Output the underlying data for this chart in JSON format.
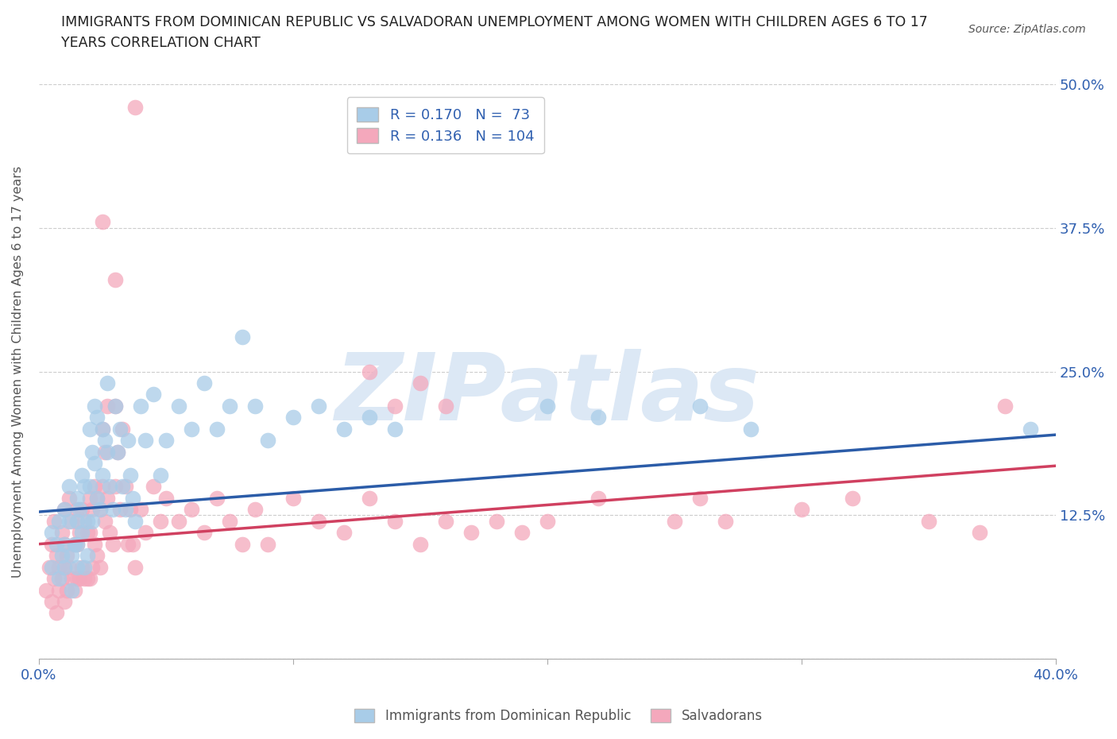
{
  "title_line1": "IMMIGRANTS FROM DOMINICAN REPUBLIC VS SALVADORAN UNEMPLOYMENT AMONG WOMEN WITH CHILDREN AGES 6 TO 17",
  "title_line2": "YEARS CORRELATION CHART",
  "source": "Source: ZipAtlas.com",
  "ylabel": "Unemployment Among Women with Children Ages 6 to 17 years",
  "xlim": [
    0,
    0.4
  ],
  "ylim": [
    0,
    0.5
  ],
  "xticks": [
    0.0,
    0.1,
    0.2,
    0.3,
    0.4
  ],
  "xticklabels": [
    "0.0%",
    "",
    "",
    "",
    "40.0%"
  ],
  "ytick_vals": [
    0.0,
    0.125,
    0.25,
    0.375,
    0.5
  ],
  "ytick_labels": [
    "",
    "12.5%",
    "25.0%",
    "37.5%",
    "50.0%"
  ],
  "blue_R": 0.17,
  "blue_N": 73,
  "pink_R": 0.136,
  "pink_N": 104,
  "blue_color": "#a8cce8",
  "pink_color": "#f4a8bc",
  "blue_line_color": "#2b5ca8",
  "pink_line_color": "#d04060",
  "axis_label_color": "#3060b0",
  "watermark": "ZIPatlas",
  "watermark_color": "#dce8f5",
  "legend_label_blue": "Immigrants from Dominican Republic",
  "legend_label_pink": "Salvadorans",
  "grid_color": "#cccccc",
  "blue_x": [
    0.005,
    0.005,
    0.007,
    0.008,
    0.008,
    0.009,
    0.01,
    0.01,
    0.01,
    0.012,
    0.012,
    0.013,
    0.013,
    0.014,
    0.015,
    0.015,
    0.015,
    0.015,
    0.016,
    0.017,
    0.017,
    0.018,
    0.018,
    0.019,
    0.019,
    0.02,
    0.02,
    0.021,
    0.021,
    0.022,
    0.022,
    0.023,
    0.023,
    0.024,
    0.025,
    0.025,
    0.026,
    0.027,
    0.027,
    0.028,
    0.029,
    0.03,
    0.031,
    0.032,
    0.033,
    0.034,
    0.035,
    0.036,
    0.037,
    0.038,
    0.04,
    0.042,
    0.045,
    0.048,
    0.05,
    0.055,
    0.06,
    0.065,
    0.07,
    0.075,
    0.08,
    0.085,
    0.09,
    0.1,
    0.11,
    0.12,
    0.13,
    0.14,
    0.2,
    0.22,
    0.26,
    0.28,
    0.39
  ],
  "blue_y": [
    0.11,
    0.08,
    0.1,
    0.12,
    0.07,
    0.09,
    0.13,
    0.1,
    0.08,
    0.15,
    0.12,
    0.09,
    0.06,
    0.1,
    0.14,
    0.12,
    0.1,
    0.08,
    0.13,
    0.16,
    0.11,
    0.15,
    0.08,
    0.12,
    0.09,
    0.2,
    0.15,
    0.18,
    0.12,
    0.22,
    0.17,
    0.21,
    0.14,
    0.13,
    0.2,
    0.16,
    0.19,
    0.24,
    0.18,
    0.15,
    0.13,
    0.22,
    0.18,
    0.2,
    0.15,
    0.13,
    0.19,
    0.16,
    0.14,
    0.12,
    0.22,
    0.19,
    0.23,
    0.16,
    0.19,
    0.22,
    0.2,
    0.24,
    0.2,
    0.22,
    0.28,
    0.22,
    0.19,
    0.21,
    0.22,
    0.2,
    0.21,
    0.2,
    0.22,
    0.21,
    0.22,
    0.2,
    0.2
  ],
  "pink_x": [
    0.003,
    0.004,
    0.005,
    0.005,
    0.006,
    0.006,
    0.007,
    0.007,
    0.008,
    0.008,
    0.009,
    0.009,
    0.01,
    0.01,
    0.01,
    0.01,
    0.011,
    0.011,
    0.012,
    0.012,
    0.013,
    0.013,
    0.014,
    0.014,
    0.015,
    0.015,
    0.015,
    0.016,
    0.016,
    0.017,
    0.017,
    0.018,
    0.018,
    0.019,
    0.019,
    0.02,
    0.02,
    0.02,
    0.021,
    0.021,
    0.022,
    0.022,
    0.023,
    0.023,
    0.024,
    0.024,
    0.025,
    0.025,
    0.026,
    0.026,
    0.027,
    0.027,
    0.028,
    0.029,
    0.03,
    0.03,
    0.031,
    0.032,
    0.033,
    0.034,
    0.035,
    0.036,
    0.037,
    0.038,
    0.04,
    0.042,
    0.045,
    0.048,
    0.05,
    0.055,
    0.06,
    0.065,
    0.07,
    0.075,
    0.08,
    0.085,
    0.09,
    0.1,
    0.11,
    0.12,
    0.13,
    0.14,
    0.15,
    0.16,
    0.17,
    0.18,
    0.19,
    0.2,
    0.22,
    0.25,
    0.26,
    0.27,
    0.3,
    0.32,
    0.35,
    0.37,
    0.038,
    0.13,
    0.14,
    0.15,
    0.16,
    0.025,
    0.03,
    0.38
  ],
  "pink_y": [
    0.06,
    0.08,
    0.05,
    0.1,
    0.07,
    0.12,
    0.09,
    0.04,
    0.08,
    0.06,
    0.11,
    0.07,
    0.13,
    0.1,
    0.08,
    0.05,
    0.09,
    0.06,
    0.14,
    0.08,
    0.12,
    0.07,
    0.1,
    0.06,
    0.13,
    0.1,
    0.07,
    0.11,
    0.07,
    0.13,
    0.08,
    0.12,
    0.07,
    0.11,
    0.07,
    0.14,
    0.11,
    0.07,
    0.13,
    0.08,
    0.15,
    0.1,
    0.14,
    0.09,
    0.13,
    0.08,
    0.2,
    0.15,
    0.18,
    0.12,
    0.22,
    0.14,
    0.11,
    0.1,
    0.22,
    0.15,
    0.18,
    0.13,
    0.2,
    0.15,
    0.1,
    0.13,
    0.1,
    0.08,
    0.13,
    0.11,
    0.15,
    0.12,
    0.14,
    0.12,
    0.13,
    0.11,
    0.14,
    0.12,
    0.1,
    0.13,
    0.1,
    0.14,
    0.12,
    0.11,
    0.14,
    0.12,
    0.1,
    0.12,
    0.11,
    0.12,
    0.11,
    0.12,
    0.14,
    0.12,
    0.14,
    0.12,
    0.13,
    0.14,
    0.12,
    0.11,
    0.48,
    0.25,
    0.22,
    0.24,
    0.22,
    0.38,
    0.33,
    0.22
  ]
}
